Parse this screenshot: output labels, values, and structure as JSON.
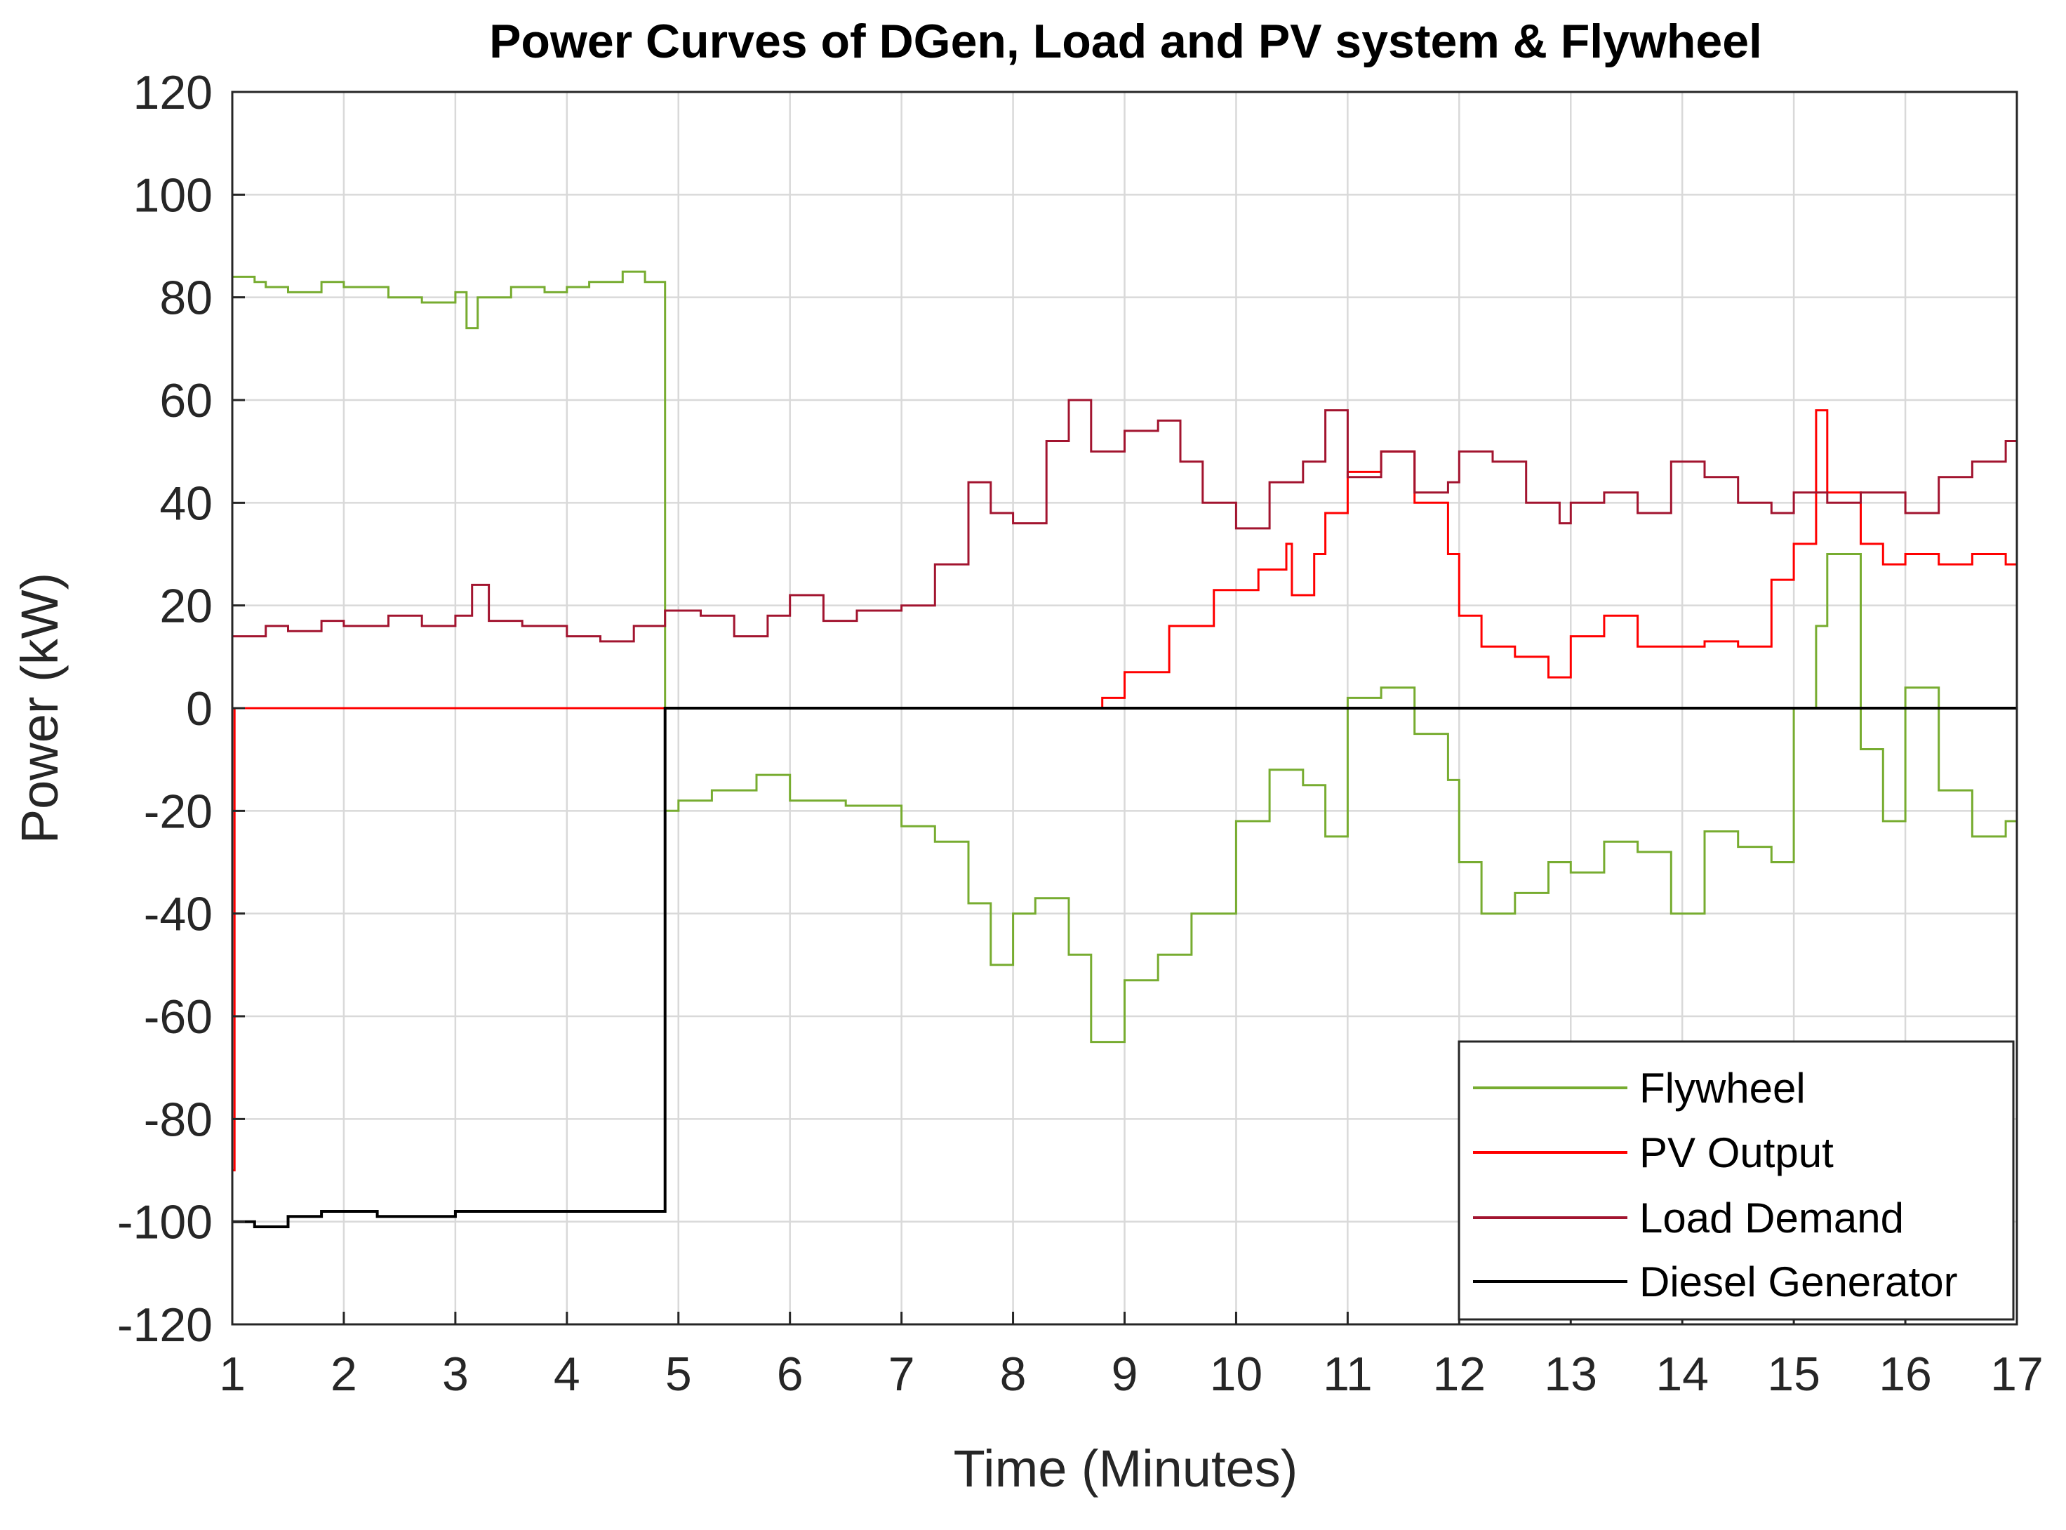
{
  "chart_data": {
    "type": "line",
    "title": "Power Curves of DGen, Load and PV system & Flywheel",
    "xlabel": "Time (Minutes)",
    "ylabel": "Power (kW)",
    "xlim": [
      1,
      17
    ],
    "ylim": [
      -120,
      120
    ],
    "xticks": [
      1,
      2,
      3,
      4,
      5,
      6,
      7,
      8,
      9,
      10,
      11,
      12,
      13,
      14,
      15,
      16,
      17
    ],
    "yticks": [
      120,
      100,
      80,
      60,
      40,
      20,
      0,
      -20,
      -40,
      -60,
      -80,
      -100,
      -120
    ],
    "grid": true,
    "legend_position": "bottom-right",
    "series": [
      {
        "name": "Flywheel",
        "color": "#77ac30",
        "step": true,
        "x": [
          1.0,
          1.2,
          1.3,
          1.5,
          1.8,
          2.0,
          2.4,
          2.7,
          3.0,
          3.1,
          3.2,
          3.5,
          3.8,
          4.0,
          4.2,
          4.5,
          4.7,
          4.88,
          4.88,
          5.0,
          5.3,
          5.7,
          6.0,
          6.5,
          7.0,
          7.3,
          7.6,
          7.8,
          8.0,
          8.2,
          8.5,
          8.7,
          9.0,
          9.3,
          9.6,
          10.0,
          10.3,
          10.6,
          10.8,
          11.0,
          11.3,
          11.6,
          11.9,
          12.0,
          12.2,
          12.5,
          12.8,
          13.0,
          13.3,
          13.6,
          13.9,
          14.2,
          14.5,
          14.8,
          15.0,
          15.2,
          15.3,
          15.6,
          15.8,
          16.0,
          16.3,
          16.6,
          16.9,
          17.0
        ],
        "values": [
          84,
          83,
          82,
          81,
          83,
          82,
          80,
          79,
          81,
          74,
          80,
          82,
          81,
          82,
          83,
          85,
          83,
          79,
          -20,
          -18,
          -16,
          -13,
          -18,
          -19,
          -23,
          -26,
          -38,
          -50,
          -40,
          -37,
          -48,
          -65,
          -53,
          -48,
          -40,
          -22,
          -12,
          -15,
          -25,
          2,
          4,
          -5,
          -14,
          -30,
          -40,
          -36,
          -30,
          -32,
          -26,
          -28,
          -40,
          -24,
          -27,
          -30,
          0,
          16,
          30,
          -8,
          -22,
          4,
          -16,
          -25,
          -22,
          -25
        ]
      },
      {
        "name": "PV Output",
        "color": "#ff0000",
        "step": true,
        "x": [
          1.0,
          1.02,
          1.05,
          8.5,
          8.8,
          9.0,
          9.4,
          9.8,
          10.2,
          10.45,
          10.5,
          10.7,
          10.8,
          11.0,
          11.3,
          11.6,
          11.9,
          12.0,
          12.2,
          12.5,
          12.8,
          13.0,
          13.3,
          13.6,
          13.9,
          14.2,
          14.5,
          14.8,
          15.0,
          15.2,
          15.3,
          15.6,
          15.8,
          16.0,
          16.3,
          16.6,
          16.9,
          17.0
        ],
        "values": [
          -90,
          0,
          0,
          0,
          2,
          7,
          16,
          23,
          27,
          32,
          22,
          30,
          38,
          46,
          50,
          40,
          30,
          18,
          12,
          10,
          6,
          14,
          18,
          12,
          12,
          13,
          12,
          25,
          32,
          58,
          42,
          32,
          28,
          30,
          28,
          30,
          28,
          25
        ]
      },
      {
        "name": "Load Demand",
        "color": "#a2142f",
        "step": true,
        "x": [
          1.0,
          1.3,
          1.5,
          1.8,
          2.0,
          2.4,
          2.7,
          3.0,
          3.15,
          3.3,
          3.6,
          4.0,
          4.3,
          4.6,
          4.88,
          5.2,
          5.5,
          5.8,
          6.0,
          6.3,
          6.6,
          7.0,
          7.3,
          7.6,
          7.8,
          8.0,
          8.3,
          8.5,
          8.7,
          9.0,
          9.3,
          9.5,
          9.7,
          10.0,
          10.3,
          10.6,
          10.8,
          11.0,
          11.3,
          11.6,
          11.9,
          12.0,
          12.3,
          12.6,
          12.9,
          13.0,
          13.3,
          13.6,
          13.9,
          14.2,
          14.5,
          14.8,
          15.0,
          15.3,
          15.6,
          16.0,
          16.3,
          16.6,
          16.9,
          17.0
        ],
        "values": [
          14,
          16,
          15,
          17,
          16,
          18,
          16,
          18,
          24,
          17,
          16,
          14,
          13,
          16,
          19,
          18,
          14,
          18,
          22,
          17,
          19,
          20,
          28,
          44,
          38,
          36,
          52,
          60,
          50,
          54,
          56,
          48,
          40,
          35,
          44,
          48,
          58,
          45,
          50,
          42,
          44,
          50,
          48,
          40,
          36,
          40,
          42,
          38,
          48,
          45,
          40,
          38,
          42,
          40,
          42,
          38,
          45,
          48,
          52,
          48
        ]
      },
      {
        "name": "Diesel Generator",
        "color": "#000000",
        "step": true,
        "x": [
          1.0,
          1.2,
          1.5,
          1.8,
          2.0,
          2.3,
          2.6,
          3.0,
          3.3,
          3.6,
          4.0,
          4.3,
          4.6,
          4.88,
          4.88,
          5.0,
          6.0,
          8.0,
          10.0,
          12.0,
          14.0,
          16.0,
          17.0
        ],
        "values": [
          -100,
          -101,
          -99,
          -98,
          -98,
          -99,
          -99,
          -98,
          -98,
          -98,
          -98,
          -98,
          -98,
          -98,
          0,
          0,
          0,
          0,
          0,
          0,
          0,
          0,
          0
        ]
      }
    ]
  }
}
